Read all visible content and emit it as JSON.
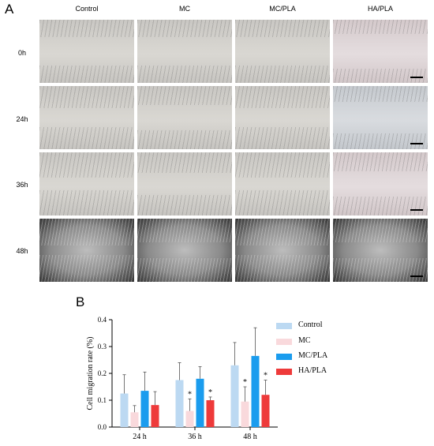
{
  "panel_a": {
    "letter": "A",
    "columns": [
      "Control",
      "MC",
      "MC/PLA",
      "HA/PLA"
    ],
    "rows": [
      "0h",
      "24h",
      "36h",
      "48h"
    ]
  },
  "panel_b": {
    "letter": "B"
  },
  "colors": {
    "control": "#bcd9f2",
    "mc": "#f9d9dc",
    "mc_pla": "#1a9cee",
    "ha_pla": "#ee3a3a"
  },
  "chart_data": {
    "type": "bar",
    "categories": [
      "24 h",
      "36 h",
      "48 h"
    ],
    "series": [
      {
        "name": "Control",
        "values": [
          0.125,
          0.175,
          0.23
        ],
        "errors": [
          0.07,
          0.065,
          0.085
        ],
        "significance": [
          "",
          "",
          ""
        ]
      },
      {
        "name": "MC",
        "values": [
          0.055,
          0.06,
          0.095
        ],
        "errors": [
          0.025,
          0.045,
          0.055
        ],
        "significance": [
          "",
          "*",
          "*"
        ]
      },
      {
        "name": "MC/PLA",
        "values": [
          0.135,
          0.18,
          0.265
        ],
        "errors": [
          0.07,
          0.045,
          0.105
        ],
        "significance": [
          "",
          "",
          ""
        ]
      },
      {
        "name": "HA/PLA",
        "values": [
          0.082,
          0.1,
          0.12
        ],
        "errors": [
          0.05,
          0.012,
          0.055
        ],
        "significance": [
          "",
          "*",
          "*"
        ]
      }
    ],
    "ylabel": "Cell migration rate (%)",
    "xlabel": "",
    "ylim": [
      0,
      0.4
    ],
    "yticks": [
      "0.0",
      "0.1",
      "0.2",
      "0.3",
      "0.4"
    ],
    "legend_position": "right"
  }
}
